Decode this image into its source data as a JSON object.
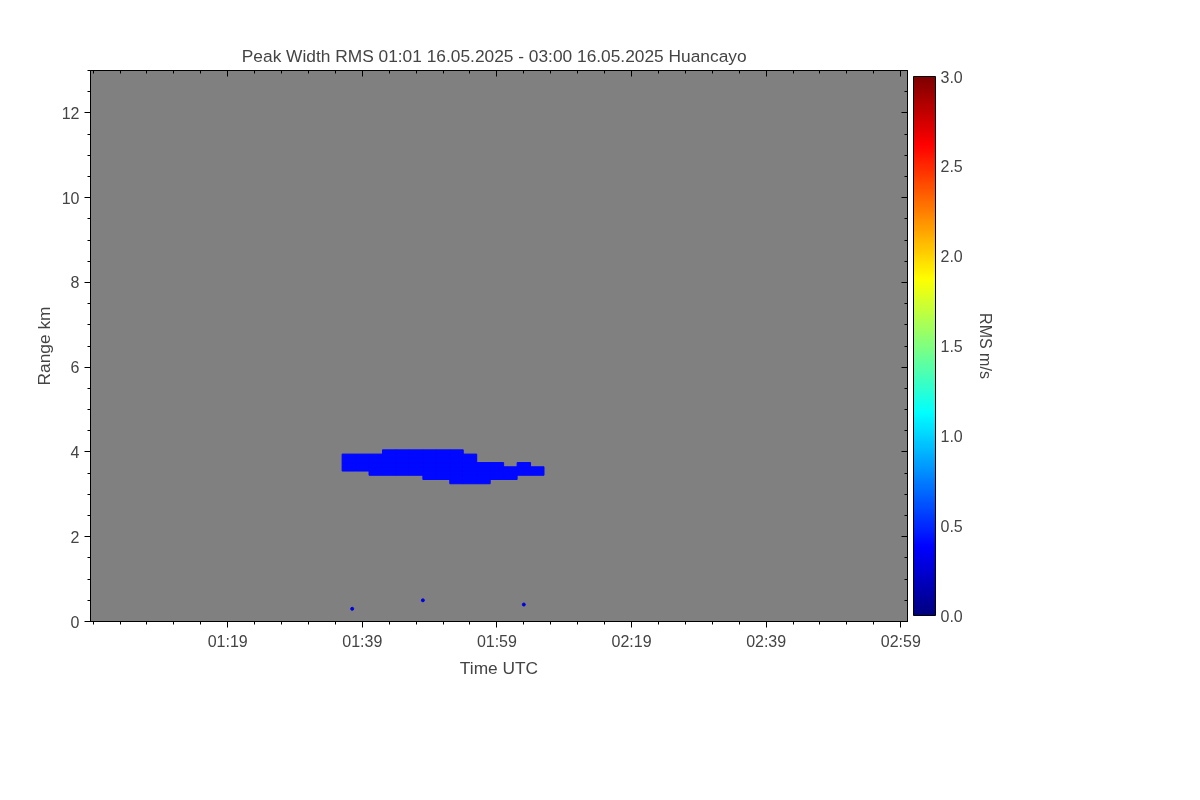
{
  "chart_data": {
    "type": "scatter",
    "title": "Peak Width RMS   01:01 16.05.2025 - 03:00 16.05.2025 Huancayo",
    "xlabel": "Time UTC",
    "ylabel": "Range km",
    "clabel": "RMS m/s",
    "xlim": [
      0.977,
      3.0
    ],
    "ylim": [
      0,
      13
    ],
    "xticks": [
      {
        "value": 1.3167,
        "label": "01:19"
      },
      {
        "value": 1.65,
        "label": "01:39"
      },
      {
        "value": 1.9833,
        "label": "01:59"
      },
      {
        "value": 2.3167,
        "label": "02:19"
      },
      {
        "value": 2.65,
        "label": "02:39"
      },
      {
        "value": 2.9833,
        "label": "02:59"
      }
    ],
    "yticks": [
      0,
      2,
      4,
      6,
      8,
      10,
      12
    ],
    "clim": [
      0,
      3
    ],
    "cticks": [
      {
        "value": 0,
        "label": "0.0"
      },
      {
        "value": 0.5,
        "label": "0.5"
      },
      {
        "value": 1,
        "label": "1.0"
      },
      {
        "value": 1.5,
        "label": "1.5"
      },
      {
        "value": 2,
        "label": "2.0"
      },
      {
        "value": 2.5,
        "label": "2.5"
      },
      {
        "value": 3,
        "label": "3.0"
      }
    ],
    "grid": false,
    "series": [
      {
        "marker": "square",
        "x": [
          1.6167,
          1.6167,
          1.6167,
          1.6167,
          1.65,
          1.65,
          1.65,
          1.65,
          1.6833,
          1.6833,
          1.6833,
          1.6833,
          1.6833,
          1.7167,
          1.7167,
          1.7167,
          1.7167,
          1.7167,
          1.7167,
          1.75,
          1.75,
          1.75,
          1.75,
          1.75,
          1.75,
          1.7833,
          1.7833,
          1.7833,
          1.7833,
          1.7833,
          1.7833,
          1.8167,
          1.8167,
          1.8167,
          1.8167,
          1.8167,
          1.8167,
          1.8167,
          1.85,
          1.85,
          1.85,
          1.85,
          1.85,
          1.85,
          1.85,
          1.8833,
          1.8833,
          1.8833,
          1.8833,
          1.8833,
          1.8833,
          1.8833,
          1.8833,
          1.9167,
          1.9167,
          1.9167,
          1.9167,
          1.9167,
          1.9167,
          1.9167,
          1.95,
          1.95,
          1.95,
          1.95,
          1.95,
          1.9833,
          1.9833,
          1.9833,
          1.9833,
          2.0167,
          2.0167,
          2.0167,
          2.05,
          2.05,
          2.05,
          2.0833,
          2.0833
        ],
        "values": [
          3.6,
          3.7,
          3.8,
          3.9,
          3.6,
          3.7,
          3.8,
          3.9,
          3.5,
          3.6,
          3.7,
          3.8,
          3.9,
          3.5,
          3.6,
          3.7,
          3.8,
          3.9,
          4.0,
          3.5,
          3.6,
          3.7,
          3.8,
          3.9,
          4.0,
          3.5,
          3.6,
          3.7,
          3.8,
          3.9,
          4.0,
          3.4,
          3.5,
          3.6,
          3.7,
          3.8,
          3.9,
          4.0,
          3.4,
          3.5,
          3.6,
          3.7,
          3.8,
          3.9,
          4.0,
          3.3,
          3.4,
          3.5,
          3.6,
          3.7,
          3.8,
          3.9,
          4.0,
          3.3,
          3.4,
          3.5,
          3.6,
          3.7,
          3.8,
          3.9,
          3.3,
          3.4,
          3.5,
          3.6,
          3.7,
          3.4,
          3.5,
          3.6,
          3.7,
          3.4,
          3.5,
          3.6,
          3.5,
          3.6,
          3.7,
          3.5,
          3.6
        ],
        "cvalues": [
          0.4,
          0.4,
          0.4,
          0.4,
          0.4,
          0.4,
          0.4,
          0.4,
          0.4,
          0.4,
          0.4,
          0.4,
          0.4,
          0.4,
          0.4,
          0.4,
          0.4,
          0.4,
          0.4,
          0.4,
          0.4,
          0.4,
          0.4,
          0.4,
          0.4,
          0.4,
          0.4,
          0.4,
          0.4,
          0.4,
          0.4,
          0.4,
          0.4,
          0.4,
          0.4,
          0.4,
          0.4,
          0.4,
          0.4,
          0.4,
          0.4,
          0.4,
          0.4,
          0.4,
          0.4,
          0.4,
          0.4,
          0.4,
          0.4,
          0.4,
          0.4,
          0.4,
          0.4,
          0.4,
          0.4,
          0.4,
          0.4,
          0.4,
          0.4,
          0.4,
          0.4,
          0.4,
          0.4,
          0.4,
          0.4,
          0.4,
          0.4,
          0.4,
          0.4,
          0.4,
          0.4,
          0.4,
          0.4,
          0.4,
          0.4,
          0.4,
          0.4
        ]
      },
      {
        "marker": "circle",
        "x": [
          1.625,
          1.8,
          2.05
        ],
        "values": [
          0.3,
          0.5,
          0.4
        ],
        "cvalues": [
          0.3,
          0.3,
          0.3
        ]
      }
    ]
  }
}
